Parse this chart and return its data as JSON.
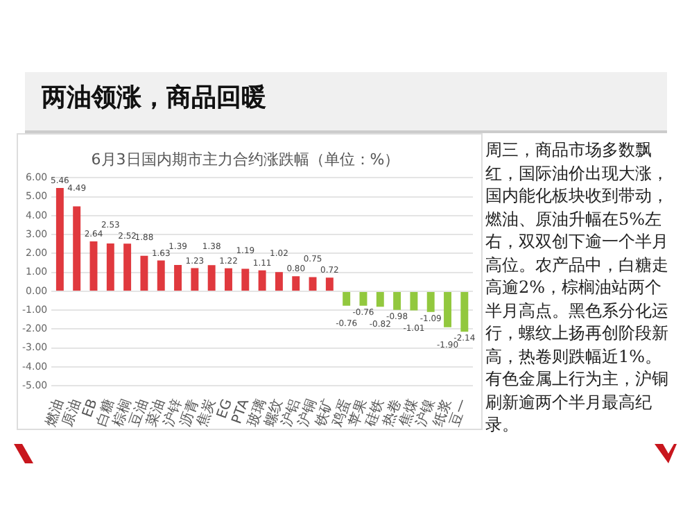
{
  "chart_data": {
    "type": "bar",
    "title": "两油领涨，商品回暖",
    "subtitle": "6月3日国内期市主力合约涨跌幅（单位：%）",
    "categories": [
      "燃油",
      "原油",
      "EB",
      "白糖",
      "棕榈",
      "豆油",
      "菜油",
      "沪锌",
      "沥青",
      "焦炭",
      "EG",
      "PTA",
      "玻璃",
      "螺纹",
      "沪铝",
      "沪铜",
      "铁矿",
      "鸡蛋",
      "苹果",
      "硅铁",
      "热卷",
      "焦煤",
      "沪镍",
      "纸浆",
      "豆一"
    ],
    "values": [
      5.46,
      4.49,
      2.64,
      2.53,
      2.52,
      1.88,
      1.63,
      1.39,
      1.23,
      1.38,
      1.22,
      1.19,
      1.11,
      1.02,
      0.8,
      0.75,
      0.72,
      -0.76,
      -0.76,
      -0.82,
      -0.98,
      -1.01,
      -1.09,
      -1.9,
      -2.14
    ],
    "value_labels": [
      "5.46",
      "4.49",
      "2.64",
      "2.53",
      "2.52",
      "1.88",
      "1.63",
      "1.39",
      "1.23",
      "1.38",
      "1.22",
      "1.19",
      "1.11",
      "1.02",
      "0.80",
      "0.75",
      "0.72",
      "-0.76",
      "-0.76",
      "-0.82",
      "-0.98",
      "-1.01",
      "-1.09",
      "-1.90",
      "-2.14"
    ],
    "colors": [
      "#e0393e",
      "#e0393e",
      "#e0393e",
      "#e0393e",
      "#e0393e",
      "#e0393e",
      "#e0393e",
      "#e0393e",
      "#e0393e",
      "#e0393e",
      "#e0393e",
      "#e0393e",
      "#e0393e",
      "#e0393e",
      "#e0393e",
      "#e0393e",
      "#e0393e",
      "#92c83e",
      "#92c83e",
      "#92c83e",
      "#92c83e",
      "#92c83e",
      "#92c83e",
      "#92c83e",
      "#92c83e"
    ],
    "ylim": [
      -5,
      6
    ],
    "yticks": [
      {
        "value": -5,
        "label": "-5.00"
      },
      {
        "value": -4,
        "label": "-4.00"
      },
      {
        "value": -3,
        "label": "-3.00"
      },
      {
        "value": -2,
        "label": "-2.00"
      },
      {
        "value": -1,
        "label": "-1.00"
      },
      {
        "value": 0,
        "label": "0.00"
      },
      {
        "value": 1,
        "label": "1.00"
      },
      {
        "value": 2,
        "label": "2.00"
      },
      {
        "value": 3,
        "label": "3.00"
      },
      {
        "value": 4,
        "label": "4.00"
      },
      {
        "value": 5,
        "label": "5.00"
      },
      {
        "value": 6,
        "label": "6.00"
      }
    ],
    "grid": "y",
    "legend": false,
    "annotations": [
      "周三，商品市场多数飘红，国际油价出现大涨，国内能化板块收到带动，燃油、原油升幅在5%左右，双双创下逾一个半月高位。农产品中，白糖走高逾2%，棕榈油站两个半月高点。黑色系分化运行，螺纹上扬再创阶段新高，热卷则跌幅近1%。有色金属上行为主，沪铜刷新逾两个半月最高纪录。"
    ]
  }
}
